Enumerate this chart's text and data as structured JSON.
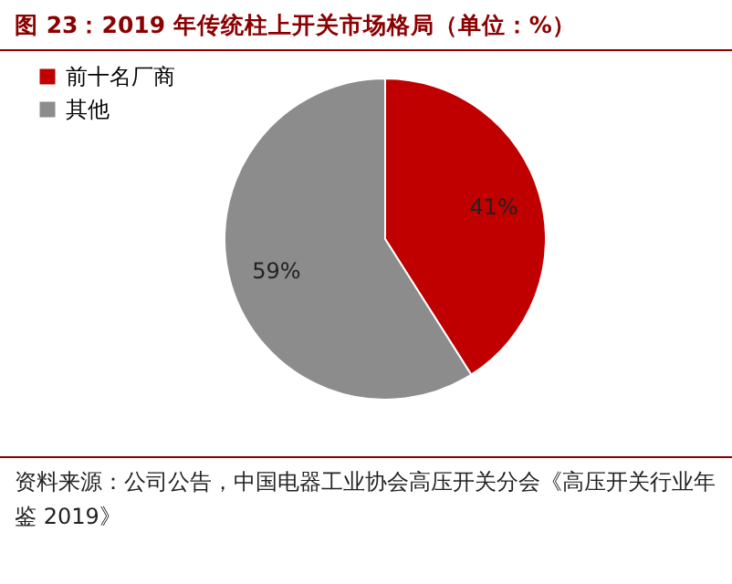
{
  "chart_data": {
    "type": "pie",
    "title": "图 23：2019 年传统柱上开关市场格局（单位：%）",
    "categories": [
      "前十名厂商",
      "其他"
    ],
    "values": [
      41,
      59
    ],
    "colors": [
      "#c00000",
      "#8c8c8c"
    ],
    "value_labels": [
      "41%",
      "59%"
    ],
    "legend": "left",
    "annotations": [
      "资料来源：公司公告，中国电器工业协会高压开关分会《高压开关行业年鉴 2019》"
    ]
  }
}
